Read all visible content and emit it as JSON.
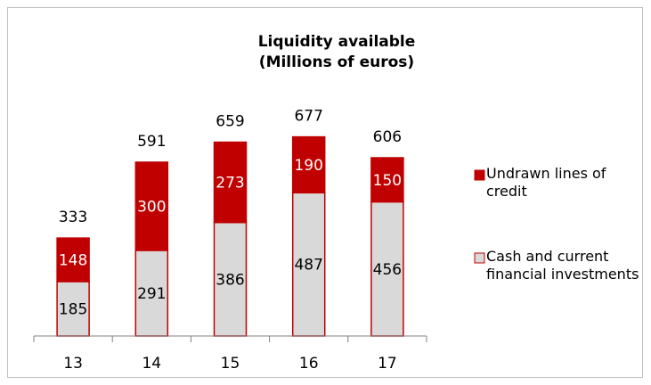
{
  "chart_data": {
    "type": "stacked_bar",
    "title": [
      "Liquidity available",
      "(Millions of euros)"
    ],
    "categories": [
      "13",
      "14",
      "15",
      "16",
      "17"
    ],
    "series": [
      {
        "name": "Cash and current financial investments",
        "color": "#d9d9d9",
        "values": [
          185,
          291,
          386,
          487,
          456
        ]
      },
      {
        "name": "Undrawn lines of credit",
        "color": "#c00000",
        "values": [
          148,
          300,
          273,
          190,
          150
        ]
      }
    ],
    "totals": [
      333,
      591,
      659,
      677,
      606
    ],
    "legend": "right"
  }
}
